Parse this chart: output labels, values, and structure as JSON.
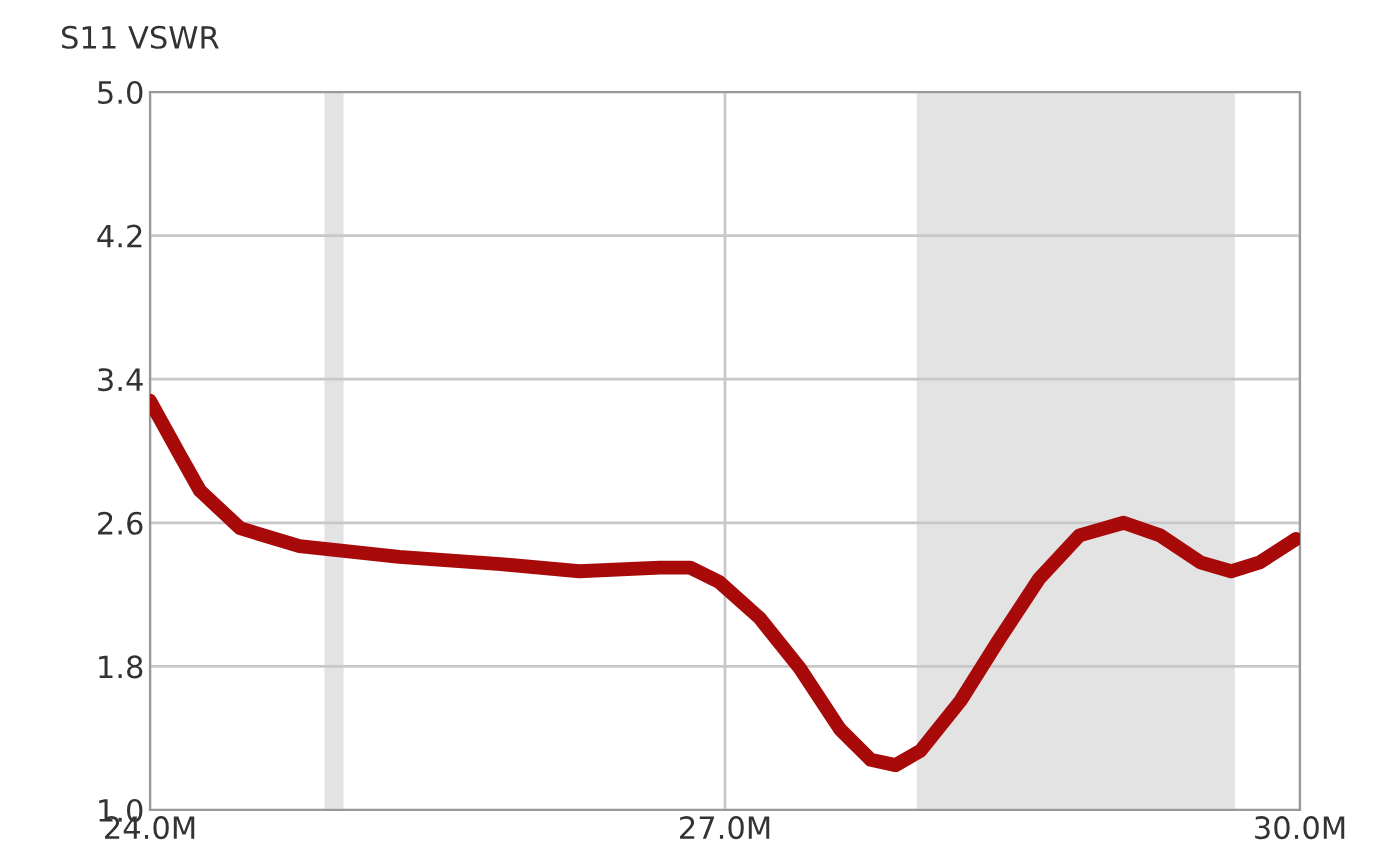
{
  "chart_data": {
    "type": "line",
    "title": "S11 VSWR",
    "x": [
      24.0,
      24.16,
      24.26,
      24.47,
      24.78,
      25.3,
      25.83,
      26.24,
      26.66,
      26.82,
      26.97,
      27.18,
      27.39,
      27.6,
      27.76,
      27.89,
      28.02,
      28.23,
      28.43,
      28.64,
      28.85,
      29.08,
      29.27,
      29.48,
      29.64,
      29.79,
      29.98
    ],
    "series": [
      {
        "color": "#a80a0a",
        "values": [
          3.28,
          2.97,
          2.78,
          2.57,
          2.47,
          2.41,
          2.37,
          2.33,
          2.35,
          2.35,
          2.27,
          2.07,
          1.79,
          1.45,
          1.28,
          1.25,
          1.33,
          1.61,
          1.95,
          2.29,
          2.53,
          2.6,
          2.53,
          2.38,
          2.33,
          2.38,
          2.51
        ]
      }
    ],
    "xlim": [
      24.0,
      30.0
    ],
    "xticks": [
      {
        "value": 24.0,
        "label": "24.0M"
      },
      {
        "value": 27.0,
        "label": "27.0M"
      },
      {
        "value": 30.0,
        "label": "30.0M"
      }
    ],
    "ylim": [
      1.0,
      5.0
    ],
    "yticks": [
      {
        "value": 1.0,
        "label": "1.0"
      },
      1.8,
      2.6,
      3.4,
      4.2,
      {
        "value": 5.0,
        "label": "5.0"
      }
    ],
    "bands": [
      {
        "axis": "x",
        "from": 24.91,
        "to": 25.01,
        "color": "#e3e3e3"
      },
      {
        "axis": "x",
        "from": 28.0,
        "to": 29.66,
        "color": "#e3e3e3"
      }
    ],
    "grid": true,
    "marker": "none",
    "line_style": "solid"
  }
}
